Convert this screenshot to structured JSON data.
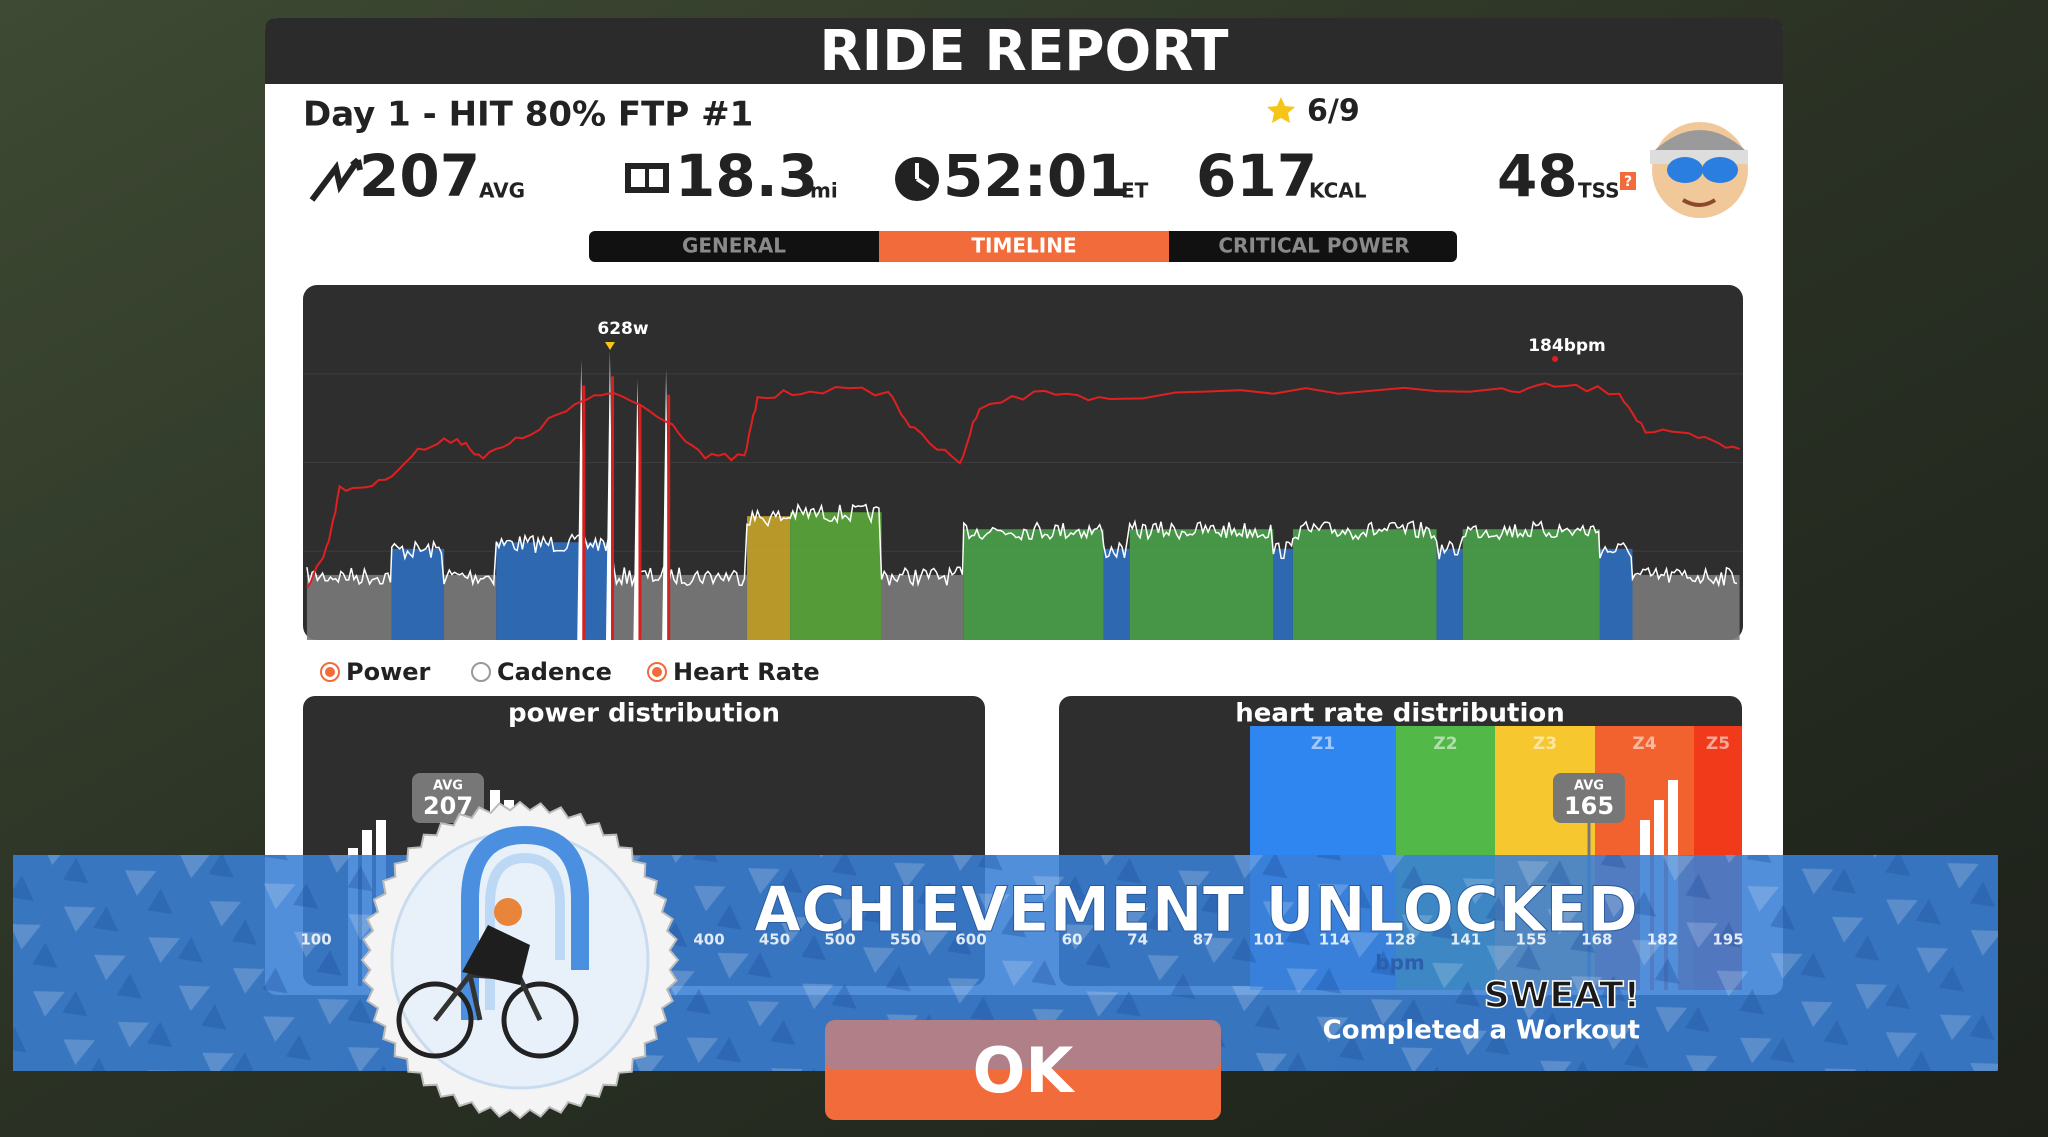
{
  "header": {
    "title": "RIDE REPORT"
  },
  "workout": {
    "name": "Day 1 - HIT 80% FTP #1",
    "rating": "6/9"
  },
  "stats": [
    {
      "value": "207",
      "unit": "AVG"
    },
    {
      "value": "18.3",
      "unit": "mi"
    },
    {
      "value": "52:01",
      "unit": "ET"
    },
    {
      "value": "617",
      "unit": "KCAL"
    },
    {
      "value": "48",
      "unit": "TSS",
      "help": "?"
    }
  ],
  "tabs": [
    "GENERAL",
    "TIMELINE",
    "CRITICAL POWER"
  ],
  "timeline": {
    "peak_power": "628w",
    "peak_heart_rate": "184bpm",
    "legend": [
      "Power",
      "Cadence",
      "Heart Rate"
    ]
  },
  "power_distribution": {
    "title": "power distribution",
    "avg_label": "AVG",
    "avg": "207",
    "ticks": [
      "100",
      "400",
      "450",
      "500",
      "550",
      "600"
    ]
  },
  "heart_rate_distribution": {
    "title": "heart rate distribution",
    "zones": [
      "Z1",
      "Z2",
      "Z3",
      "Z4",
      "Z5"
    ],
    "avg_label": "AVG",
    "avg": "165",
    "ticks": [
      "60",
      "74",
      "87",
      "101",
      "114",
      "128",
      "141",
      "155",
      "168",
      "182",
      "195"
    ],
    "axis_label": "bpm"
  },
  "achievement": {
    "title": "ACHIEVEMENT UNLOCKED",
    "name": "SWEAT!",
    "description": "Completed a Workout",
    "button": "OK"
  }
}
